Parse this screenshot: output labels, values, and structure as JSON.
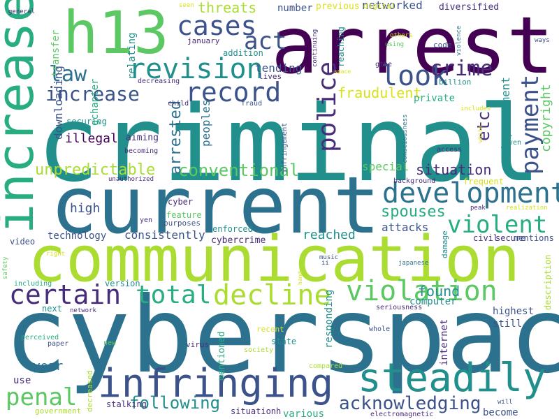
{
  "colors": {
    "background": "#ffffff",
    "palette": [
      "#440154",
      "#472c7a",
      "#3b528b",
      "#2c728e",
      "#21908d",
      "#27ad81",
      "#5cc863",
      "#aadc32",
      "#d8e219",
      "#fde725"
    ]
  },
  "words": [
    "arrest",
    "criminal",
    "cyberspace",
    "current",
    "communication",
    "h13",
    "increased",
    "infringing",
    "steadily",
    "development",
    "revision",
    "record",
    "cases",
    "look",
    "crime",
    "police",
    "payment",
    "act",
    "law",
    "increase",
    "violent",
    "violation",
    "decline",
    "total",
    "certain",
    "penal",
    "following",
    "acknowledging",
    "spouses",
    "conventional",
    "unpredictable",
    "situation",
    "arrested",
    "threats",
    "fraudulent",
    "copyright",
    "improvement",
    "etc",
    "networked",
    "diversified",
    "number",
    "previous",
    "digital",
    "seen",
    "general",
    "transfer",
    "downloading",
    "gchapter",
    "relating",
    "illegal",
    "aiming",
    "peoples",
    "tending",
    "lives",
    "private",
    "special",
    "attacks",
    "high",
    "reached",
    "technology",
    "consistently",
    "enforced",
    "cybercrime",
    "cyber",
    "feature",
    "purposes",
    "yen",
    "video",
    "right",
    "safety",
    "including",
    "version",
    "found",
    "computer",
    "description",
    "internet",
    "responding",
    "highest",
    "still",
    "virus",
    "mentioned",
    "recent",
    "state",
    "society",
    "whole",
    "compared",
    "year",
    "use",
    "next",
    "perceived",
    "paper",
    "new",
    "decreased",
    "stalking",
    "government",
    "situationh",
    "electromagnetic",
    "various",
    "become",
    "will",
    "securing",
    "becoming",
    "child",
    "fraud",
    "infringement",
    "consciousness",
    "white",
    "even",
    "access",
    "frequent",
    "background",
    "unauthorized",
    "january",
    "addition",
    "decreasing",
    "billion",
    "code",
    "using",
    "others",
    "violence",
    "ways",
    "gthe",
    "continuing",
    "reaching",
    "space",
    "includes",
    "peak",
    "realization",
    "damage",
    "civil",
    "secure",
    "mentions",
    "music",
    "ii",
    "japanese",
    "hand",
    "seriousness",
    "network"
  ]
}
